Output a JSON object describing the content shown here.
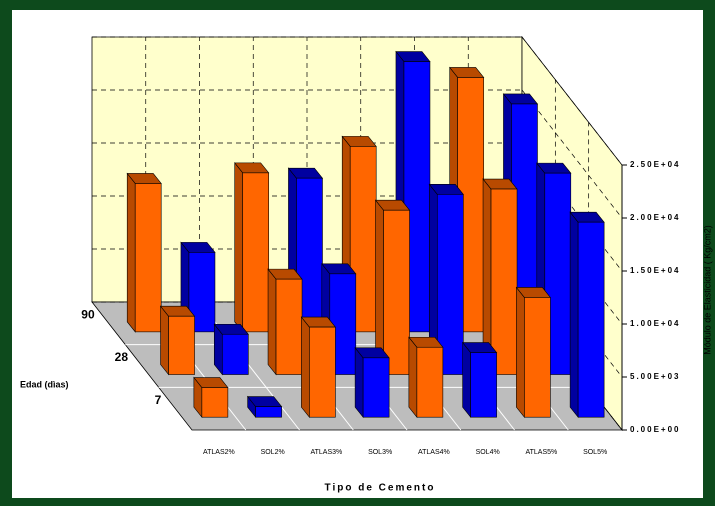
{
  "chart_data": {
    "type": "bar3d",
    "x_label": "Tipo de Cemento",
    "y_label": "Módulo de Elasticidad ( Kg/cm2)",
    "z_label": "Edad (dìas)",
    "categories": [
      "ATLAS2%",
      "SOL2%",
      "ATLAS3%",
      "SOL3%",
      "ATLAS4%",
      "SOL4%",
      "ATLAS5%",
      "SOL5%"
    ],
    "colors": [
      "#ff6600",
      "#0000ff",
      "#ff6600",
      "#0000ff",
      "#ff6600",
      "#0000ff",
      "#ff6600",
      "#0000ff"
    ],
    "series": [
      {
        "name": "7",
        "values": [
          2800,
          1000,
          8500,
          5600,
          6600,
          6100,
          11300,
          18400
        ]
      },
      {
        "name": "28",
        "values": [
          5500,
          3800,
          9000,
          9500,
          15500,
          17000,
          17500,
          19000
        ]
      },
      {
        "name": "90",
        "values": [
          14000,
          7500,
          15000,
          14500,
          17500,
          25500,
          24000,
          21500
        ]
      }
    ],
    "ylim": [
      0,
      25000
    ],
    "yticks": [
      {
        "value": 0,
        "label": "0.00E+00"
      },
      {
        "value": 5000,
        "label": "5.00E+03"
      },
      {
        "value": 10000,
        "label": "1.00E+04"
      },
      {
        "value": 15000,
        "label": "1.50E+04"
      },
      {
        "value": 20000,
        "label": "2.00E+04"
      },
      {
        "value": 25000,
        "label": "2.50E+04"
      }
    ],
    "grid": true
  }
}
